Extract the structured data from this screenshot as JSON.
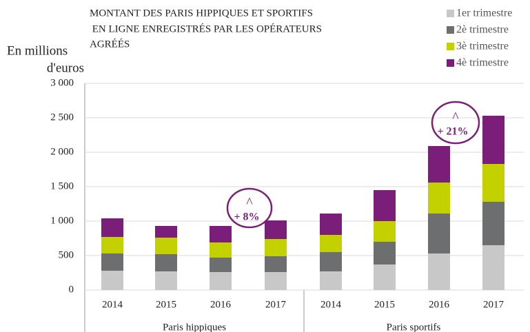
{
  "chart_data": {
    "type": "stacked_bar",
    "title": [
      "MONTANT DES PARIS HIPPIQUES ET SPORTIFS",
      " EN LIGNE ENREGISTRÉS PAR LES OPÉRATEURS",
      "AGRÉÉS"
    ],
    "y_label": [
      "En millions",
      "d'euros"
    ],
    "categories": [
      "2014",
      "2015",
      "2016",
      "2017",
      "2014",
      "2015",
      "2016",
      "2017"
    ],
    "groups": [
      "Paris hippiques",
      "Paris sportifs"
    ],
    "series": [
      {
        "name": "1er trimestre",
        "color": "#c8c8c8",
        "values": [
          280,
          270,
          260,
          260,
          270,
          370,
          530,
          650
        ]
      },
      {
        "name": "2è trimestre",
        "color": "#6d6e70",
        "values": [
          250,
          250,
          210,
          230,
          280,
          330,
          580,
          630
        ]
      },
      {
        "name": "3è trimestre",
        "color": "#c3d100",
        "values": [
          240,
          240,
          220,
          250,
          250,
          300,
          450,
          550
        ]
      },
      {
        "name": "4è trimestre",
        "color": "#7b1e7a",
        "values": [
          270,
          170,
          240,
          270,
          310,
          450,
          530,
          700
        ]
      }
    ],
    "ylim": [
      0,
      3000
    ],
    "yticks": [
      0,
      500,
      {
        "value": 1000,
        "label": "1 000"
      },
      {
        "value": 1500,
        "label": "1 500"
      },
      {
        "value": 2000,
        "label": "2 000"
      },
      {
        "value": 2500,
        "label": "2 500"
      },
      {
        "value": 3000,
        "label": "3 000"
      }
    ],
    "grid": true,
    "annotations": [
      {
        "symbol": "^",
        "text": "+ 8%"
      },
      {
        "symbol": "^",
        "text": "+ 21%"
      }
    ]
  }
}
